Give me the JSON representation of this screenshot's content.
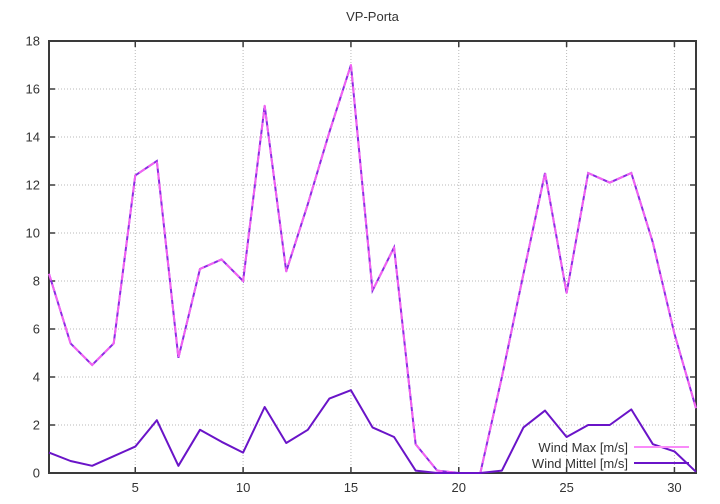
{
  "window": {
    "background": "#ffffff"
  },
  "chart_data": {
    "type": "line",
    "title": "VP-Porta",
    "xlabel": "",
    "ylabel": "",
    "x": [
      1,
      2,
      3,
      4,
      5,
      6,
      7,
      8,
      9,
      10,
      11,
      12,
      13,
      14,
      15,
      16,
      17,
      18,
      19,
      20,
      21,
      22,
      23,
      24,
      25,
      26,
      27,
      28,
      29,
      30,
      31
    ],
    "series": [
      {
        "name": "Wind Max [m/s]",
        "color": "#f263f2",
        "underlay_color": "#8a2be2",
        "legend_color": "#f98af9",
        "dashed": true,
        "values": [
          8.3,
          5.4,
          4.5,
          5.4,
          12.4,
          13,
          4.8,
          8.5,
          8.9,
          8,
          15.3,
          8.4,
          11.2,
          14.2,
          17,
          7.6,
          9.4,
          1.2,
          0.1,
          0,
          0,
          4,
          8.3,
          12.5,
          7.5,
          12.5,
          12.1,
          12.5,
          9.6,
          5.8,
          2.7
        ]
      },
      {
        "name": "Wind Mittel [m/s]",
        "color": "#6a14c8",
        "legend_color": "#6a14c8",
        "dashed": false,
        "values": [
          0.85,
          0.5,
          0.3,
          0.7,
          1.1,
          2.2,
          0.3,
          1.8,
          1.3,
          0.85,
          2.75,
          1.25,
          1.8,
          3.1,
          3.45,
          1.9,
          1.5,
          0.1,
          0,
          0,
          0,
          0.1,
          1.9,
          2.6,
          1.5,
          2,
          2,
          2.65,
          1.2,
          0.9,
          0.05
        ]
      }
    ],
    "xlim": [
      1,
      31
    ],
    "ylim": [
      0,
      18
    ],
    "xticks": [
      5,
      10,
      15,
      20,
      25,
      30
    ],
    "yticks": [
      0,
      2,
      4,
      6,
      8,
      10,
      12,
      14,
      16,
      18
    ],
    "grid": true,
    "legend_position": "bottom-right",
    "colors": {
      "axis": "#3a3a3a",
      "grid": "#b9b9b9",
      "text": "#333333"
    }
  }
}
